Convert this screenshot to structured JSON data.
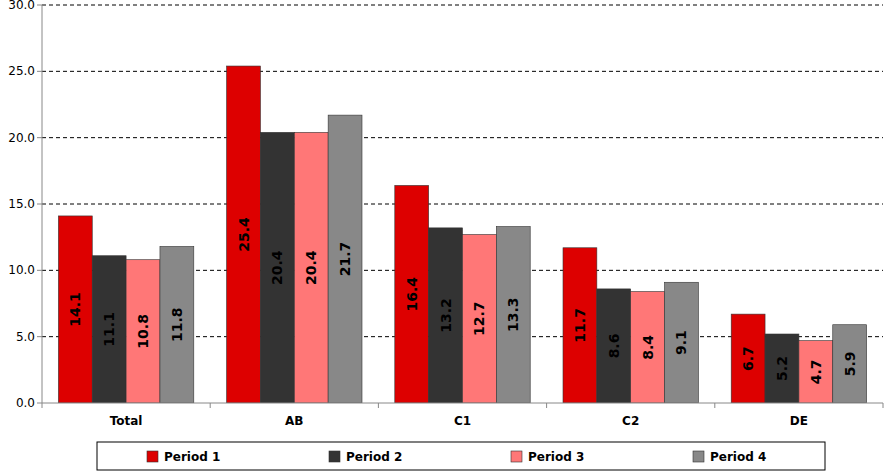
{
  "chart_data": {
    "type": "bar",
    "categories": [
      "Total",
      "AB",
      "C1",
      "C2",
      "DE"
    ],
    "series": [
      {
        "name": "Period 1",
        "color": "#dd0000",
        "values": [
          14.1,
          25.4,
          16.4,
          11.7,
          6.7
        ]
      },
      {
        "name": "Period 2",
        "color": "#333333",
        "values": [
          11.1,
          20.4,
          13.2,
          8.6,
          5.2
        ]
      },
      {
        "name": "Period 3",
        "color": "#ff7777",
        "values": [
          10.8,
          20.4,
          12.7,
          8.4,
          4.7
        ]
      },
      {
        "name": "Period 4",
        "color": "#888888",
        "values": [
          11.8,
          21.7,
          13.3,
          9.1,
          5.9
        ]
      }
    ],
    "ylim": [
      0,
      30
    ],
    "yticks": [
      {
        "value": 0,
        "label": "0.0"
      },
      {
        "value": 5,
        "label": "5.0"
      },
      {
        "value": 10,
        "label": "10.0"
      },
      {
        "value": 15,
        "label": "15.0"
      },
      {
        "value": 20,
        "label": "20.0"
      },
      {
        "value": 25,
        "label": "25.0"
      },
      {
        "value": 30,
        "label": "30.0"
      }
    ],
    "grid": true,
    "legend": "bottom",
    "data_labels": true
  }
}
